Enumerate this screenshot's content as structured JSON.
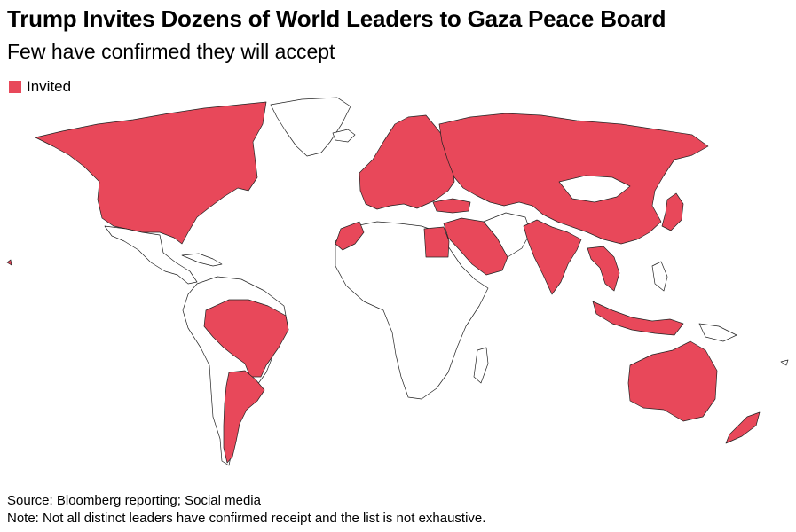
{
  "title": "Trump Invites Dozens of World Leaders to Gaza Peace Board",
  "subtitle": "Few have confirmed they will accept",
  "legend": {
    "label": "Invited",
    "color": "#e8485a"
  },
  "colors": {
    "invited": "#e8485a",
    "not_invited": "#ffffff",
    "border": "#222222"
  },
  "source": "Source: Bloomberg reporting; Social media",
  "note": "Note: Not all distinct leaders have confirmed receipt and the list is not exhaustive."
}
